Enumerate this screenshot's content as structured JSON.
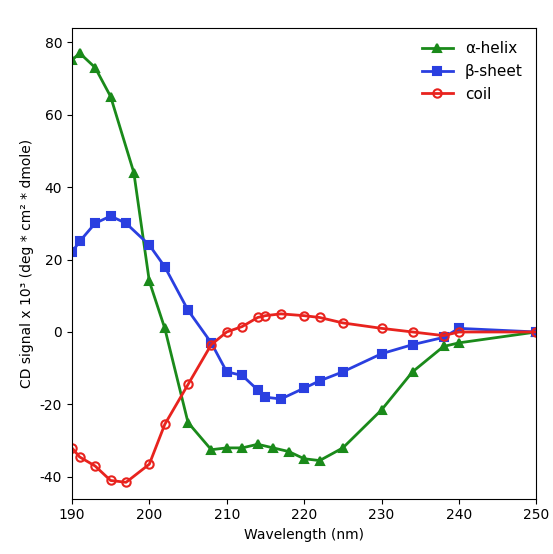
{
  "chart_data": {
    "type": "line",
    "x_label": "Wavelength (nm)",
    "y_label": "CD signal x 10³ (deg * cm² * dmole)",
    "xlim": [
      190,
      250
    ],
    "xticks": [
      190,
      200,
      210,
      220,
      230,
      240,
      250
    ],
    "ylim": [
      -46,
      84
    ],
    "yticks": [
      -40,
      -20,
      0,
      20,
      40,
      60,
      80
    ],
    "grid": false,
    "legend": "upper right",
    "series": [
      {
        "name": "α-helix",
        "color": "#1a8a1a",
        "marker": "triangle",
        "line_style": "solid",
        "x": [
          190,
          191,
          193,
          195,
          198,
          200,
          202,
          205,
          208,
          210,
          212,
          214,
          216,
          218,
          220,
          222,
          225,
          230,
          234,
          238,
          240,
          250
        ],
        "values": [
          75,
          77,
          73,
          65,
          44,
          14,
          1,
          -25,
          -32.5,
          -32,
          -32,
          -31,
          -32,
          -33,
          -35,
          -35.5,
          -32,
          -21.5,
          -11,
          -4,
          -3,
          0
        ]
      },
      {
        "name": "β-sheet",
        "color": "#2a3fe0",
        "marker": "square",
        "line_style": "solid",
        "x": [
          190,
          191,
          193,
          195,
          197,
          200,
          202,
          205,
          208,
          210,
          212,
          214,
          215,
          217,
          220,
          222,
          225,
          230,
          234,
          238,
          240,
          250
        ],
        "values": [
          22,
          25,
          30,
          32,
          30,
          24,
          18,
          6,
          -3,
          -11,
          -12,
          -16,
          -18,
          -18.5,
          -15.5,
          -13.5,
          -11,
          -6,
          -3.5,
          -1.5,
          1,
          0
        ]
      },
      {
        "name": "coil",
        "color": "#e8231e",
        "marker": "open_circle",
        "line_style": "solid",
        "x": [
          190,
          191,
          193,
          195,
          197,
          200,
          202,
          205,
          208,
          210,
          212,
          214,
          215,
          217,
          220,
          222,
          225,
          230,
          234,
          238,
          240,
          250
        ],
        "values": [
          -32,
          -34.5,
          -37,
          -41,
          -41.5,
          -36.5,
          -25.5,
          -14.5,
          -3.5,
          0,
          1.5,
          4,
          4.5,
          5,
          4.5,
          4,
          2.5,
          1,
          0,
          -1,
          0,
          0
        ]
      }
    ]
  }
}
